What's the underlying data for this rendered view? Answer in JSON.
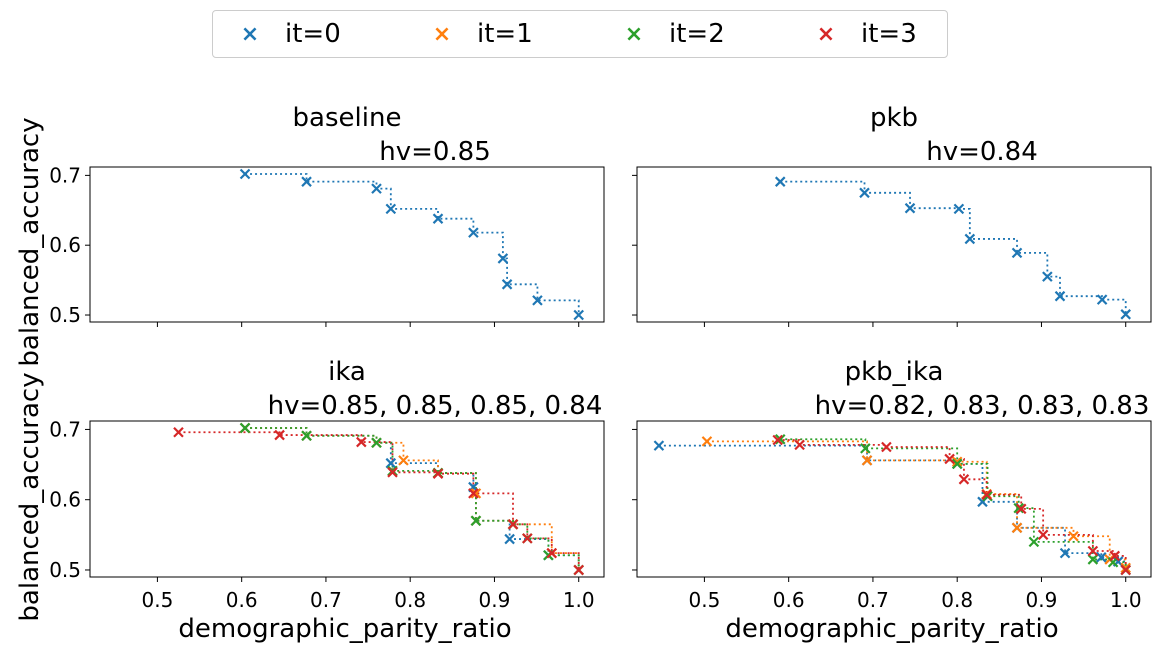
{
  "legend": {
    "items": [
      {
        "label": "it=0",
        "color": "#1f77b4"
      },
      {
        "label": "it=1",
        "color": "#ff7f0e"
      },
      {
        "label": "it=2",
        "color": "#2ca02c"
      },
      {
        "label": "it=3",
        "color": "#d62728"
      }
    ]
  },
  "chart_data": [
    {
      "type": "scatter",
      "title": "baseline",
      "subtitle": "hv=0.85",
      "xlabel": "",
      "ylabel": "balanced_accuracy",
      "xlim": [
        0.42,
        1.03
      ],
      "ylim": [
        0.49,
        0.712
      ],
      "xticks": [
        0.5,
        0.6,
        0.7,
        0.8,
        0.9,
        1.0
      ],
      "yticks": [
        0.5,
        0.6,
        0.7
      ],
      "step_lines": true,
      "series": [
        {
          "name": "it=0",
          "color": "#1f77b4",
          "points": [
            [
              0.604,
              0.702
            ],
            [
              0.677,
              0.691
            ],
            [
              0.76,
              0.681
            ],
            [
              0.777,
              0.652
            ],
            [
              0.833,
              0.638
            ],
            [
              0.875,
              0.618
            ],
            [
              0.91,
              0.581
            ],
            [
              0.915,
              0.544
            ],
            [
              0.951,
              0.521
            ],
            [
              1.0,
              0.5
            ]
          ]
        }
      ]
    },
    {
      "type": "scatter",
      "title": "pkb",
      "subtitle": "hv=0.84",
      "xlabel": "",
      "ylabel": "",
      "xlim": [
        0.42,
        1.03
      ],
      "ylim": [
        0.49,
        0.712
      ],
      "xticks": [
        0.5,
        0.6,
        0.7,
        0.8,
        0.9,
        1.0
      ],
      "yticks": [
        0.5,
        0.6,
        0.7
      ],
      "step_lines": true,
      "series": [
        {
          "name": "it=0",
          "color": "#1f77b4",
          "points": [
            [
              0.59,
              0.691
            ],
            [
              0.69,
              0.675
            ],
            [
              0.744,
              0.653
            ],
            [
              0.802,
              0.652
            ],
            [
              0.815,
              0.609
            ],
            [
              0.871,
              0.589
            ],
            [
              0.907,
              0.555
            ],
            [
              0.922,
              0.527
            ],
            [
              0.972,
              0.522
            ],
            [
              1.0,
              0.501
            ]
          ]
        }
      ]
    },
    {
      "type": "scatter",
      "title": "ika",
      "subtitle": "hv=0.85, 0.85, 0.85, 0.84",
      "xlabel": "demographic_parity_ratio",
      "ylabel": "balanced_accuracy",
      "xlim": [
        0.42,
        1.03
      ],
      "ylim": [
        0.49,
        0.712
      ],
      "xticks": [
        0.5,
        0.6,
        0.7,
        0.8,
        0.9,
        1.0
      ],
      "xticklabels": [
        "0.5",
        "0.6",
        "0.7",
        "0.8",
        "0.9",
        "1.0"
      ],
      "yticks": [
        0.5,
        0.6,
        0.7
      ],
      "step_lines": true,
      "series": [
        {
          "name": "it=0",
          "color": "#1f77b4",
          "points": [
            [
              0.604,
              0.702
            ],
            [
              0.677,
              0.691
            ],
            [
              0.76,
              0.681
            ],
            [
              0.777,
              0.652
            ],
            [
              0.833,
              0.638
            ],
            [
              0.875,
              0.618
            ],
            [
              0.878,
              0.57
            ],
            [
              0.918,
              0.544
            ],
            [
              0.964,
              0.521
            ],
            [
              1.0,
              0.5
            ]
          ]
        },
        {
          "name": "it=1",
          "color": "#ff7f0e",
          "points": [
            [
              0.604,
              0.702
            ],
            [
              0.677,
              0.691
            ],
            [
              0.76,
              0.681
            ],
            [
              0.792,
              0.656
            ],
            [
              0.833,
              0.638
            ],
            [
              0.878,
              0.609
            ],
            [
              0.878,
              0.57
            ],
            [
              0.922,
              0.565
            ],
            [
              0.968,
              0.524
            ],
            [
              1.0,
              0.5
            ]
          ]
        },
        {
          "name": "it=2",
          "color": "#2ca02c",
          "points": [
            [
              0.604,
              0.702
            ],
            [
              0.677,
              0.691
            ],
            [
              0.76,
              0.681
            ],
            [
              0.779,
              0.641
            ],
            [
              0.833,
              0.638
            ],
            [
              0.878,
              0.57
            ],
            [
              0.922,
              0.565
            ],
            [
              0.939,
              0.545
            ],
            [
              0.964,
              0.521
            ],
            [
              1.0,
              0.5
            ]
          ]
        },
        {
          "name": "it=3",
          "color": "#d62728",
          "points": [
            [
              0.525,
              0.696
            ],
            [
              0.645,
              0.692
            ],
            [
              0.742,
              0.682
            ],
            [
              0.779,
              0.639
            ],
            [
              0.833,
              0.637
            ],
            [
              0.875,
              0.609
            ],
            [
              0.922,
              0.565
            ],
            [
              0.939,
              0.545
            ],
            [
              0.968,
              0.524
            ],
            [
              1.0,
              0.5
            ]
          ]
        }
      ]
    },
    {
      "type": "scatter",
      "title": "pkb_ika",
      "subtitle": "hv=0.82, 0.83, 0.83, 0.83",
      "xlabel": "demographic_parity_ratio",
      "ylabel": "",
      "xlim": [
        0.42,
        1.03
      ],
      "ylim": [
        0.49,
        0.712
      ],
      "xticks": [
        0.5,
        0.6,
        0.7,
        0.8,
        0.9,
        1.0
      ],
      "xticklabels": [
        "0.5",
        "0.6",
        "0.7",
        "0.8",
        "0.9",
        "1.0"
      ],
      "yticks": [
        0.5,
        0.6,
        0.7
      ],
      "step_lines": true,
      "series": [
        {
          "name": "it=0",
          "color": "#1f77b4",
          "points": [
            [
              0.446,
              0.677
            ],
            [
              0.693,
              0.656
            ],
            [
              0.8,
              0.651
            ],
            [
              0.83,
              0.597
            ],
            [
              0.871,
              0.56
            ],
            [
              0.928,
              0.524
            ],
            [
              0.971,
              0.518
            ],
            [
              0.991,
              0.512
            ],
            [
              1.0,
              0.5
            ]
          ]
        },
        {
          "name": "it=1",
          "color": "#ff7f0e",
          "points": [
            [
              0.503,
              0.683
            ],
            [
              0.693,
              0.656
            ],
            [
              0.8,
              0.654
            ],
            [
              0.835,
              0.608
            ],
            [
              0.871,
              0.56
            ],
            [
              0.938,
              0.548
            ],
            [
              0.981,
              0.515
            ],
            [
              1.0,
              0.503
            ]
          ]
        },
        {
          "name": "it=2",
          "color": "#2ca02c",
          "points": [
            [
              0.59,
              0.686
            ],
            [
              0.691,
              0.673
            ],
            [
              0.8,
              0.651
            ],
            [
              0.836,
              0.605
            ],
            [
              0.873,
              0.588
            ],
            [
              0.891,
              0.54
            ],
            [
              0.961,
              0.515
            ],
            [
              0.985,
              0.511
            ],
            [
              1.0,
              0.5
            ]
          ]
        },
        {
          "name": "it=3",
          "color": "#d62728",
          "points": [
            [
              0.587,
              0.685
            ],
            [
              0.613,
              0.678
            ],
            [
              0.716,
              0.675
            ],
            [
              0.791,
              0.658
            ],
            [
              0.808,
              0.629
            ],
            [
              0.835,
              0.607
            ],
            [
              0.876,
              0.587
            ],
            [
              0.902,
              0.55
            ],
            [
              0.961,
              0.527
            ],
            [
              0.987,
              0.52
            ],
            [
              1.0,
              0.5
            ]
          ]
        }
      ]
    }
  ]
}
